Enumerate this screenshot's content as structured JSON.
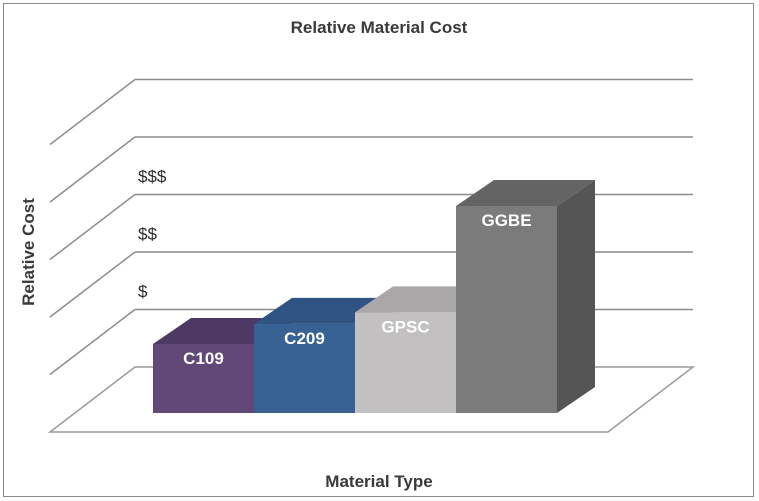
{
  "chart_data": {
    "type": "bar",
    "title": "Relative Material Cost",
    "xlabel": "Material Type",
    "ylabel": "Relative Cost",
    "categories": [
      "C109",
      "C209",
      "GPSC",
      "GGBE"
    ],
    "values": [
      1.2,
      1.55,
      1.75,
      3.6
    ],
    "ylim": [
      0,
      5
    ],
    "tick_labels": [
      {
        "value": 1.25,
        "label": "$"
      },
      {
        "value": 2.25,
        "label": "$$"
      },
      {
        "value": 3.25,
        "label": "$$$"
      }
    ],
    "grid": true,
    "legend": "none",
    "bar_colors": {
      "C109": {
        "front": "#614877",
        "side": "#4a3560",
        "top": "#4e3964"
      },
      "C209": {
        "front": "#396294",
        "side": "#2a4a73",
        "top": "#2f5383"
      },
      "GPSC": {
        "front": "#c2c0c1",
        "side": "#9f9d9e",
        "top": "#a9a7a8"
      },
      "GGBE": {
        "front": "#7b7b7b",
        "side": "#555555",
        "top": "#646464"
      }
    }
  }
}
